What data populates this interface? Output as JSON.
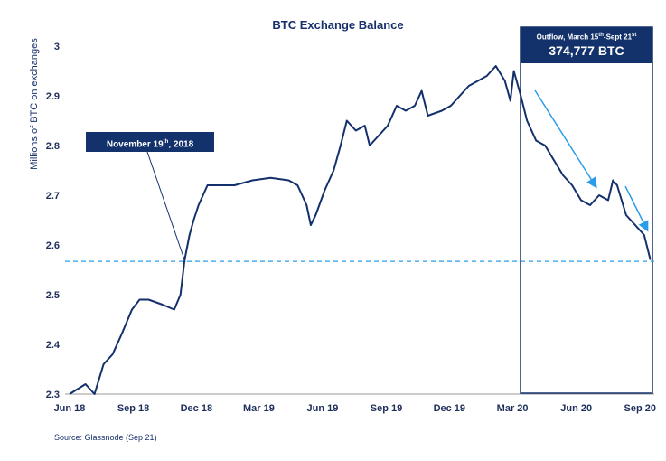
{
  "chart_data": {
    "type": "line",
    "title": "BTC Exchange Balance",
    "ylabel": "Millions of BTC on exchanges",
    "xlabel": "",
    "ylim": [
      2.3,
      3.0
    ],
    "yticks": [
      "3",
      "2.9",
      "2.8",
      "2.7",
      "2.6",
      "2.5",
      "2.4",
      "2.3"
    ],
    "xticks": [
      {
        "label": "Jun 18",
        "date": "2018-06-01"
      },
      {
        "label": "Sep 18",
        "date": "2018-09-01"
      },
      {
        "label": "Dec 18",
        "date": "2018-12-01"
      },
      {
        "label": "Mar 19",
        "date": "2019-03-01"
      },
      {
        "label": "Jun 19",
        "date": "2019-06-01"
      },
      {
        "label": "Sep 19",
        "date": "2019-09-01"
      },
      {
        "label": "Dec 19",
        "date": "2019-12-01"
      },
      {
        "label": "Mar 20",
        "date": "2020-03-01"
      },
      {
        "label": "Jun 20",
        "date": "2020-06-01"
      },
      {
        "label": "Sep 20",
        "date": "2020-09-01"
      }
    ],
    "grid": false,
    "line_color": "#13306b",
    "reference_line": {
      "value": 2.567,
      "color": "#2a9de8",
      "style": "dashed"
    },
    "points": [
      [
        "2018-06-01",
        2.3
      ],
      [
        "2018-06-24",
        2.32
      ],
      [
        "2018-07-07",
        2.3
      ],
      [
        "2018-07-20",
        2.36
      ],
      [
        "2018-08-02",
        2.38
      ],
      [
        "2018-08-15",
        2.42
      ],
      [
        "2018-08-30",
        2.47
      ],
      [
        "2018-09-10",
        2.49
      ],
      [
        "2018-09-23",
        2.49
      ],
      [
        "2018-10-13",
        2.48
      ],
      [
        "2018-10-30",
        2.47
      ],
      [
        "2018-11-08",
        2.5
      ],
      [
        "2018-11-14",
        2.57
      ],
      [
        "2018-11-21",
        2.62
      ],
      [
        "2018-11-27",
        2.65
      ],
      [
        "2018-12-04",
        2.68
      ],
      [
        "2018-12-17",
        2.72
      ],
      [
        "2018-12-30",
        2.72
      ],
      [
        "2019-01-25",
        2.72
      ],
      [
        "2019-02-20",
        2.73
      ],
      [
        "2019-03-18",
        2.735
      ],
      [
        "2019-04-13",
        2.73
      ],
      [
        "2019-04-26",
        2.72
      ],
      [
        "2019-05-09",
        2.68
      ],
      [
        "2019-05-15",
        2.64
      ],
      [
        "2019-05-22",
        2.66
      ],
      [
        "2019-06-04",
        2.71
      ],
      [
        "2019-06-17",
        2.75
      ],
      [
        "2019-06-27",
        2.8
      ],
      [
        "2019-07-06",
        2.85
      ],
      [
        "2019-07-19",
        2.83
      ],
      [
        "2019-08-01",
        2.84
      ],
      [
        "2019-08-08",
        2.8
      ],
      [
        "2019-08-21",
        2.82
      ],
      [
        "2019-09-03",
        2.84
      ],
      [
        "2019-09-16",
        2.88
      ],
      [
        "2019-09-29",
        2.87
      ],
      [
        "2019-10-12",
        2.88
      ],
      [
        "2019-10-22",
        2.91
      ],
      [
        "2019-10-31",
        2.86
      ],
      [
        "2019-11-20",
        2.87
      ],
      [
        "2019-12-03",
        2.88
      ],
      [
        "2019-12-16",
        2.9
      ],
      [
        "2019-12-29",
        2.92
      ],
      [
        "2020-01-11",
        2.93
      ],
      [
        "2020-01-24",
        2.94
      ],
      [
        "2020-02-06",
        2.96
      ],
      [
        "2020-02-19",
        2.93
      ],
      [
        "2020-02-27",
        2.89
      ],
      [
        "2020-03-03",
        2.95
      ],
      [
        "2020-03-13",
        2.9
      ],
      [
        "2020-03-22",
        2.85
      ],
      [
        "2020-04-04",
        2.81
      ],
      [
        "2020-04-17",
        2.8
      ],
      [
        "2020-04-30",
        2.77
      ],
      [
        "2020-05-13",
        2.74
      ],
      [
        "2020-05-26",
        2.72
      ],
      [
        "2020-06-08",
        2.69
      ],
      [
        "2020-06-21",
        2.68
      ],
      [
        "2020-07-04",
        2.7
      ],
      [
        "2020-07-17",
        2.69
      ],
      [
        "2020-07-24",
        2.73
      ],
      [
        "2020-07-30",
        2.72
      ],
      [
        "2020-08-12",
        2.66
      ],
      [
        "2020-08-25",
        2.64
      ],
      [
        "2020-09-07",
        2.62
      ],
      [
        "2020-09-16",
        2.57
      ]
    ],
    "annotations": {
      "november": {
        "text": "November 19",
        "sup": "th",
        "suffix": ", 2018"
      },
      "outflow": {
        "l1a": "Outflow, March 15",
        "sup1": "th",
        "l1b": "-Sept 21",
        "sup2": "st",
        "value": "374,777 BTC"
      },
      "arrow_color": "#2a9de8"
    },
    "source": "Source: Glassnode (Sep 21)"
  }
}
